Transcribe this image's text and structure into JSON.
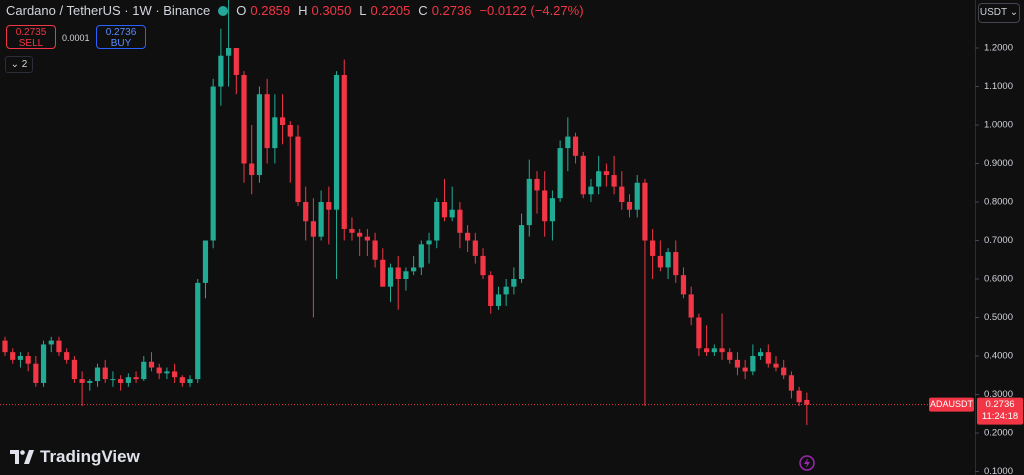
{
  "header": {
    "symbol": "Cardano / TetherUS · 1W · Binance",
    "o_label": "O",
    "o": "0.2859",
    "h_label": "H",
    "h": "0.3050",
    "l_label": "L",
    "l": "0.2205",
    "c_label": "C",
    "c": "0.2736",
    "change": "−0.0122 (−4.27%)"
  },
  "trade": {
    "sell_price": "0.2735",
    "sell": "SELL",
    "spread": "0.0001",
    "buy_price": "0.2736",
    "buy": "BUY"
  },
  "indicators": "2",
  "currency": "USDT",
  "logo": "TradingView",
  "chart_data": {
    "type": "candlestick",
    "up_color": "#22ab94",
    "down_color": "#f23645",
    "ylim": [
      0.0909,
      1.3247
    ],
    "yticks": [
      {
        "value": 0.1,
        "label": "0.1000"
      },
      {
        "value": 0.2,
        "label": "0.2000"
      },
      {
        "value": 0.3,
        "label": "0.3000"
      },
      {
        "value": 0.4,
        "label": "0.4000"
      },
      {
        "value": 0.5,
        "label": "0.5000"
      },
      {
        "value": 0.6,
        "label": "0.6000"
      },
      {
        "value": 0.7,
        "label": "0.7000"
      },
      {
        "value": 0.8,
        "label": "0.8000"
      },
      {
        "value": 0.9,
        "label": "0.9000"
      },
      {
        "value": 1.0,
        "label": "1.0000"
      },
      {
        "value": 1.1,
        "label": "1.1000"
      },
      {
        "value": 1.2,
        "label": "1.2000"
      }
    ],
    "last_price": {
      "value": 0.2736,
      "symbol": "ADAUSDT",
      "label": "0.2736",
      "countdown": "11:24:18"
    },
    "candles": [
      [
        0.44,
        0.45,
        0.4,
        0.41
      ],
      [
        0.41,
        0.42,
        0.38,
        0.39
      ],
      [
        0.39,
        0.41,
        0.37,
        0.4
      ],
      [
        0.4,
        0.41,
        0.36,
        0.38
      ],
      [
        0.38,
        0.4,
        0.32,
        0.33
      ],
      [
        0.33,
        0.44,
        0.32,
        0.43
      ],
      [
        0.43,
        0.45,
        0.41,
        0.44
      ],
      [
        0.44,
        0.45,
        0.4,
        0.41
      ],
      [
        0.41,
        0.42,
        0.38,
        0.39
      ],
      [
        0.39,
        0.4,
        0.33,
        0.34
      ],
      [
        0.34,
        0.36,
        0.27,
        0.33
      ],
      [
        0.33,
        0.34,
        0.31,
        0.335
      ],
      [
        0.335,
        0.38,
        0.32,
        0.37
      ],
      [
        0.37,
        0.39,
        0.33,
        0.34
      ],
      [
        0.34,
        0.36,
        0.32,
        0.34
      ],
      [
        0.34,
        0.35,
        0.31,
        0.33
      ],
      [
        0.33,
        0.355,
        0.32,
        0.345
      ],
      [
        0.345,
        0.36,
        0.33,
        0.34
      ],
      [
        0.34,
        0.4,
        0.335,
        0.385
      ],
      [
        0.385,
        0.41,
        0.36,
        0.37
      ],
      [
        0.37,
        0.38,
        0.34,
        0.355
      ],
      [
        0.355,
        0.37,
        0.34,
        0.36
      ],
      [
        0.36,
        0.38,
        0.33,
        0.345
      ],
      [
        0.345,
        0.35,
        0.32,
        0.33
      ],
      [
        0.33,
        0.35,
        0.32,
        0.34
      ],
      [
        0.34,
        0.6,
        0.33,
        0.59
      ],
      [
        0.59,
        0.7,
        0.55,
        0.7
      ],
      [
        0.7,
        1.12,
        0.68,
        1.1
      ],
      [
        1.1,
        1.25,
        1.05,
        1.18
      ],
      [
        1.18,
        1.34,
        1.1,
        1.2
      ],
      [
        1.2,
        1.2,
        1.08,
        1.13
      ],
      [
        1.13,
        1.14,
        0.85,
        0.9
      ],
      [
        0.9,
        1.0,
        0.82,
        0.87
      ],
      [
        0.87,
        1.1,
        0.85,
        1.08
      ],
      [
        1.08,
        1.12,
        0.9,
        0.94
      ],
      [
        0.94,
        1.08,
        0.9,
        1.02
      ],
      [
        1.02,
        1.08,
        0.95,
        1.0
      ],
      [
        1.0,
        1.01,
        0.85,
        0.97
      ],
      [
        0.97,
        1.0,
        0.79,
        0.8
      ],
      [
        0.8,
        0.84,
        0.7,
        0.75
      ],
      [
        0.75,
        0.81,
        0.5,
        0.71
      ],
      [
        0.71,
        0.83,
        0.7,
        0.8
      ],
      [
        0.8,
        0.84,
        0.69,
        0.78
      ],
      [
        0.78,
        1.14,
        0.6,
        1.13
      ],
      [
        1.13,
        1.17,
        0.7,
        0.73
      ],
      [
        0.73,
        0.76,
        0.7,
        0.72
      ],
      [
        0.72,
        0.73,
        0.66,
        0.71
      ],
      [
        0.71,
        0.73,
        0.66,
        0.7
      ],
      [
        0.7,
        0.72,
        0.63,
        0.65
      ],
      [
        0.65,
        0.68,
        0.58,
        0.58
      ],
      [
        0.58,
        0.64,
        0.54,
        0.63
      ],
      [
        0.63,
        0.66,
        0.52,
        0.6
      ],
      [
        0.6,
        0.63,
        0.57,
        0.62
      ],
      [
        0.62,
        0.66,
        0.61,
        0.63
      ],
      [
        0.63,
        0.7,
        0.61,
        0.69
      ],
      [
        0.69,
        0.72,
        0.64,
        0.7
      ],
      [
        0.7,
        0.81,
        0.68,
        0.8
      ],
      [
        0.8,
        0.86,
        0.75,
        0.76
      ],
      [
        0.76,
        0.84,
        0.75,
        0.78
      ],
      [
        0.78,
        0.8,
        0.68,
        0.72
      ],
      [
        0.72,
        0.74,
        0.67,
        0.7
      ],
      [
        0.7,
        0.72,
        0.64,
        0.66
      ],
      [
        0.66,
        0.68,
        0.6,
        0.61
      ],
      [
        0.61,
        0.62,
        0.51,
        0.53
      ],
      [
        0.53,
        0.58,
        0.52,
        0.56
      ],
      [
        0.56,
        0.6,
        0.53,
        0.58
      ],
      [
        0.58,
        0.63,
        0.56,
        0.6
      ],
      [
        0.6,
        0.77,
        0.59,
        0.74
      ],
      [
        0.74,
        0.91,
        0.71,
        0.86
      ],
      [
        0.86,
        0.88,
        0.77,
        0.83
      ],
      [
        0.83,
        0.88,
        0.71,
        0.75
      ],
      [
        0.75,
        0.83,
        0.7,
        0.81
      ],
      [
        0.81,
        0.96,
        0.8,
        0.94
      ],
      [
        0.94,
        1.02,
        0.88,
        0.97
      ],
      [
        0.97,
        0.98,
        0.9,
        0.92
      ],
      [
        0.92,
        0.93,
        0.81,
        0.82
      ],
      [
        0.82,
        0.86,
        0.8,
        0.84
      ],
      [
        0.84,
        0.92,
        0.82,
        0.88
      ],
      [
        0.88,
        0.9,
        0.84,
        0.87
      ],
      [
        0.87,
        0.92,
        0.82,
        0.84
      ],
      [
        0.84,
        0.88,
        0.78,
        0.8
      ],
      [
        0.8,
        0.82,
        0.76,
        0.78
      ],
      [
        0.78,
        0.87,
        0.76,
        0.85
      ],
      [
        0.85,
        0.86,
        0.27,
        0.7
      ],
      [
        0.7,
        0.73,
        0.6,
        0.66
      ],
      [
        0.66,
        0.7,
        0.62,
        0.63
      ],
      [
        0.63,
        0.68,
        0.6,
        0.67
      ],
      [
        0.67,
        0.7,
        0.59,
        0.61
      ],
      [
        0.61,
        0.63,
        0.55,
        0.56
      ],
      [
        0.56,
        0.58,
        0.48,
        0.5
      ],
      [
        0.5,
        0.51,
        0.4,
        0.42
      ],
      [
        0.42,
        0.48,
        0.4,
        0.41
      ],
      [
        0.41,
        0.43,
        0.4,
        0.42
      ],
      [
        0.42,
        0.51,
        0.39,
        0.41
      ],
      [
        0.41,
        0.42,
        0.38,
        0.39
      ],
      [
        0.39,
        0.41,
        0.35,
        0.37
      ],
      [
        0.37,
        0.39,
        0.34,
        0.36
      ],
      [
        0.36,
        0.43,
        0.35,
        0.4
      ],
      [
        0.4,
        0.42,
        0.39,
        0.41
      ],
      [
        0.41,
        0.43,
        0.37,
        0.38
      ],
      [
        0.38,
        0.4,
        0.36,
        0.37
      ],
      [
        0.37,
        0.39,
        0.34,
        0.35
      ],
      [
        0.35,
        0.36,
        0.29,
        0.31
      ],
      [
        0.31,
        0.32,
        0.27,
        0.28
      ],
      [
        0.2859,
        0.305,
        0.2205,
        0.2736
      ]
    ]
  }
}
